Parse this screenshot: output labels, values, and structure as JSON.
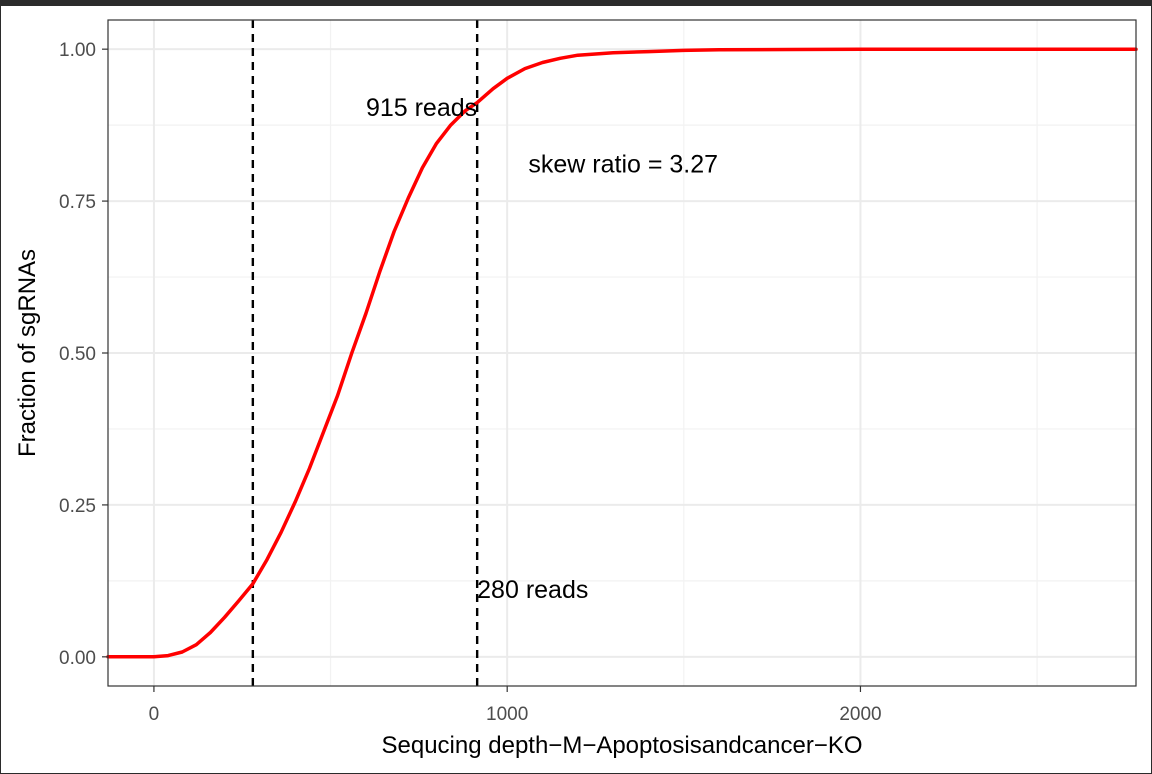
{
  "chart_data": {
    "type": "line",
    "title": "",
    "xlabel": "Sequcing depth−M−Apoptosisandcancer−KO",
    "ylabel": "Fraction of sgRNAs",
    "xlim": [
      -130,
      2780
    ],
    "ylim": [
      -0.048,
      1.048
    ],
    "x_ticks": [
      0,
      1000,
      2000
    ],
    "x_tick_labels": [
      "0",
      "1000",
      "2000"
    ],
    "y_ticks": [
      0,
      0.25,
      0.5,
      0.75,
      1.0
    ],
    "y_tick_labels": [
      "0.00",
      "0.25",
      "0.50",
      "0.75",
      "1.00"
    ],
    "grid": true,
    "series": [
      {
        "color": "#ff0000",
        "x": [
          -130,
          0,
          40,
          80,
          120,
          160,
          200,
          240,
          280,
          320,
          360,
          400,
          440,
          480,
          520,
          560,
          600,
          640,
          680,
          720,
          760,
          800,
          840,
          880,
          915,
          960,
          1000,
          1050,
          1100,
          1150,
          1200,
          1300,
          1400,
          1500,
          1600,
          1800,
          2000,
          2400,
          2780
        ],
        "y": [
          0.0,
          0.0,
          0.002,
          0.008,
          0.02,
          0.04,
          0.065,
          0.092,
          0.12,
          0.16,
          0.205,
          0.255,
          0.31,
          0.37,
          0.43,
          0.5,
          0.565,
          0.635,
          0.7,
          0.755,
          0.805,
          0.845,
          0.875,
          0.898,
          0.912,
          0.935,
          0.952,
          0.968,
          0.978,
          0.985,
          0.99,
          0.994,
          0.996,
          0.998,
          0.999,
          0.9995,
          1.0,
          1.0,
          1.0
        ]
      }
    ],
    "vlines": [
      280,
      915
    ],
    "annotations": [
      {
        "text": "915 reads",
        "x": 915,
        "y": 0.89,
        "anchor": "end"
      },
      {
        "text": "280 reads",
        "x": 915,
        "y": 0.097,
        "anchor": "start"
      },
      {
        "text": "skew ratio = 3.27",
        "x": 1060,
        "y": 0.797,
        "anchor": "start"
      }
    ]
  }
}
